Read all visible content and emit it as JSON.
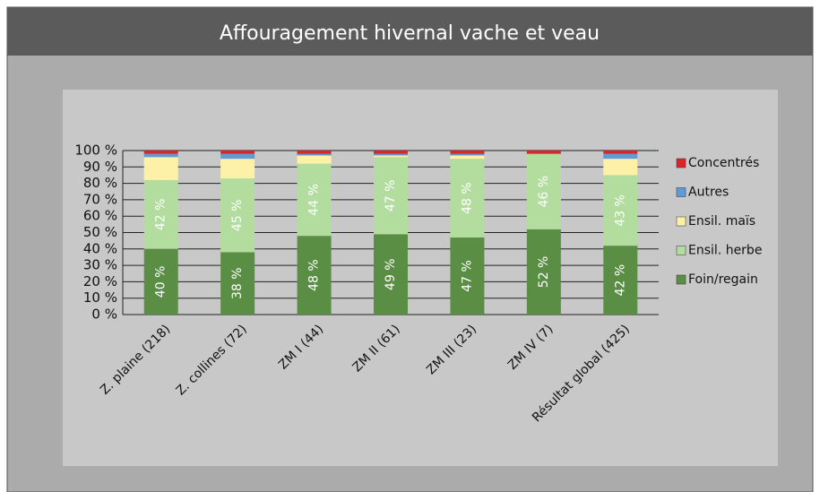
{
  "chart_data": {
    "type": "stacked_bar",
    "title": "Affouragement hivernal vache et veau",
    "categories": [
      "Z. plaine (218)",
      "Z. collines (72)",
      "ZM I (44)",
      "ZM II (61)",
      "ZM III (23)",
      "ZM IV (7)",
      "Résultat global (425)"
    ],
    "series": [
      {
        "name": "Foin/regain",
        "color": "#5b8e45",
        "values": [
          40,
          38,
          48,
          49,
          47,
          52,
          42
        ],
        "value_labels": [
          "40 %",
          "38 %",
          "48 %",
          "49 %",
          "47 %",
          "52 %",
          "42 %"
        ]
      },
      {
        "name": "Ensil. herbe",
        "color": "#b3dd9f",
        "values": [
          42,
          45,
          44,
          47,
          48,
          46,
          43
        ],
        "value_labels": [
          "42 %",
          "45 %",
          "44 %",
          "47 %",
          "48 %",
          "46 %",
          "43 %"
        ]
      },
      {
        "name": "Ensil. maïs",
        "color": "#fdf1a8",
        "values": [
          14,
          12,
          5,
          1,
          2,
          0,
          10
        ]
      },
      {
        "name": "Autres",
        "color": "#5f9bd6",
        "values": [
          2,
          3,
          1,
          1,
          1,
          0,
          3
        ]
      },
      {
        "name": "Concentrés",
        "color": "#d9262b",
        "values": [
          2,
          2,
          2,
          2,
          2,
          2,
          2
        ]
      }
    ],
    "ylim": [
      0,
      100
    ],
    "yticks": [
      {
        "value": 0,
        "label": "0 %"
      },
      {
        "value": 10,
        "label": "10 %"
      },
      {
        "value": 20,
        "label": "20 %"
      },
      {
        "value": 30,
        "label": "30 %"
      },
      {
        "value": 40,
        "label": "40 %"
      },
      {
        "value": 50,
        "label": "50 %"
      },
      {
        "value": 60,
        "label": "60 %"
      },
      {
        "value": 70,
        "label": "70 %"
      },
      {
        "value": 80,
        "label": "80 %"
      },
      {
        "value": 90,
        "label": "90 %"
      },
      {
        "value": 100,
        "label": "100 %"
      }
    ],
    "grid": true
  }
}
